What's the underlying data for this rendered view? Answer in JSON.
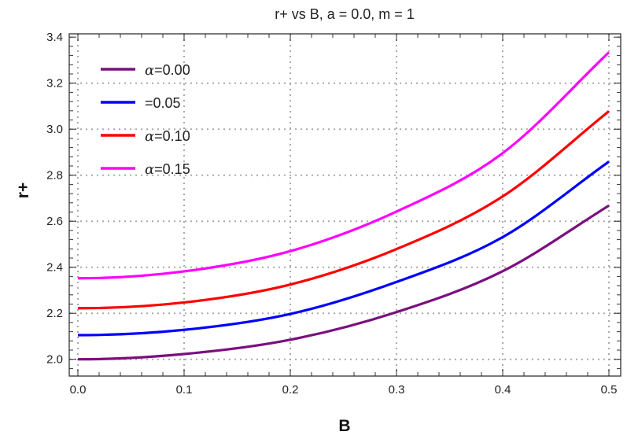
{
  "chart_data": {
    "type": "line",
    "title": "r+ vs B, a = 0.0,  m = 1",
    "xlabel": "B",
    "ylabel": "r+",
    "xlim": [
      0,
      0.5
    ],
    "ylim": [
      1.96,
      3.41
    ],
    "xticks": [
      "0.0",
      "0.1",
      "0.2",
      "0.3",
      "0.4",
      "0.5"
    ],
    "yticks": [
      "2.0",
      "2.2",
      "2.4",
      "2.6",
      "2.8",
      "3.0",
      "3.2",
      "3.4"
    ],
    "grid": true,
    "legend_position": "top-left",
    "x": [
      0.0,
      0.1,
      0.2,
      0.3,
      0.4,
      0.5
    ],
    "series": [
      {
        "name": "α=0.00",
        "legend_prefix": "α",
        "legend_value": "=0.00",
        "color": "#7b0f7e",
        "values": [
          2.0,
          2.023,
          2.085,
          2.205,
          2.383,
          2.668
        ]
      },
      {
        "name": "=0.05",
        "legend_prefix": "",
        "legend_value": "=0.05",
        "color": "#0000ff",
        "values": [
          2.105,
          2.128,
          2.197,
          2.336,
          2.531,
          2.859
        ]
      },
      {
        "name": "α=0.10",
        "legend_prefix": "α",
        "legend_value": "=0.10",
        "color": "#ff0000",
        "values": [
          2.222,
          2.247,
          2.325,
          2.479,
          2.708,
          3.078
        ]
      },
      {
        "name": "α=0.15",
        "legend_prefix": "α",
        "legend_value": "=0.15",
        "color": "#ff00ff",
        "values": [
          2.352,
          2.382,
          2.47,
          2.642,
          2.896,
          3.334
        ]
      }
    ]
  }
}
